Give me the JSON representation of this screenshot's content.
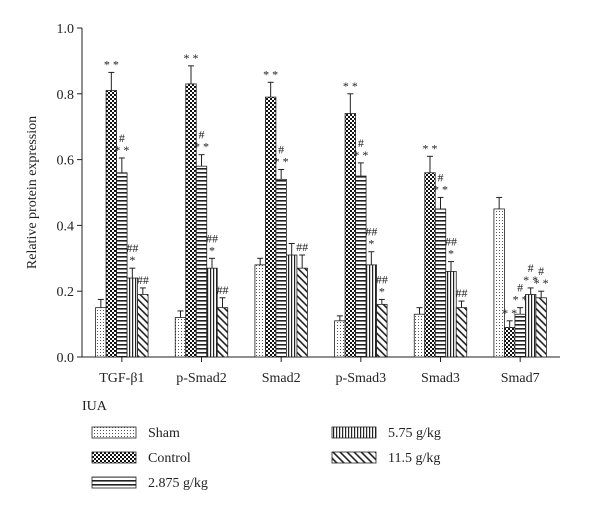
{
  "chart_data": {
    "type": "bar",
    "ylabel": "Relative protein expression",
    "ylim": [
      0,
      1.0
    ],
    "yticks": [
      "0.0",
      "0.2",
      "0.4",
      "0.6",
      "0.8",
      "1.0"
    ],
    "categories": [
      "TGF-β1",
      "p-Smad2",
      "Smad2",
      "p-Smad3",
      "Smad3",
      "Smad7"
    ],
    "legend_title": "IUA",
    "legend_placement": "bottom",
    "series": [
      {
        "name": "Sham",
        "pattern": "dots",
        "values": [
          0.15,
          0.12,
          0.28,
          0.11,
          0.13,
          0.45
        ],
        "errors": [
          0.025,
          0.02,
          0.02,
          0.015,
          0.02,
          0.035
        ],
        "marks": [
          "",
          "",
          "",
          "",
          "",
          ""
        ]
      },
      {
        "name": "Control",
        "pattern": "checker",
        "values": [
          0.81,
          0.83,
          0.79,
          0.74,
          0.56,
          0.09
        ],
        "errors": [
          0.055,
          0.055,
          0.045,
          0.06,
          0.05,
          0.02
        ],
        "marks": [
          "**",
          "**",
          "**",
          "**",
          "**",
          "**"
        ]
      },
      {
        "name": "2.875 g/kg",
        "pattern": "hlines",
        "values": [
          0.56,
          0.58,
          0.54,
          0.55,
          0.45,
          0.13
        ],
        "errors": [
          0.045,
          0.035,
          0.03,
          0.04,
          0.035,
          0.02
        ],
        "marks": [
          "#\n**",
          "#\n**",
          "#\n**",
          "#\n**",
          "#\n**",
          "#\n**"
        ]
      },
      {
        "name": "5.75 g/kg",
        "pattern": "vlines",
        "values": [
          0.24,
          0.27,
          0.31,
          0.28,
          0.26,
          0.19
        ],
        "errors": [
          0.03,
          0.03,
          0.035,
          0.04,
          0.03,
          0.02
        ],
        "marks": [
          "##\n*",
          "##\n*",
          "",
          "##\n*",
          "##\n*",
          "#\n**"
        ]
      },
      {
        "name": "11.5 g/kg",
        "pattern": "diag",
        "values": [
          0.19,
          0.15,
          0.27,
          0.16,
          0.15,
          0.18
        ],
        "errors": [
          0.02,
          0.03,
          0.04,
          0.015,
          0.02,
          0.02
        ],
        "marks": [
          "##",
          "##",
          "##",
          "##\n*",
          "##",
          "#\n**"
        ]
      }
    ]
  }
}
